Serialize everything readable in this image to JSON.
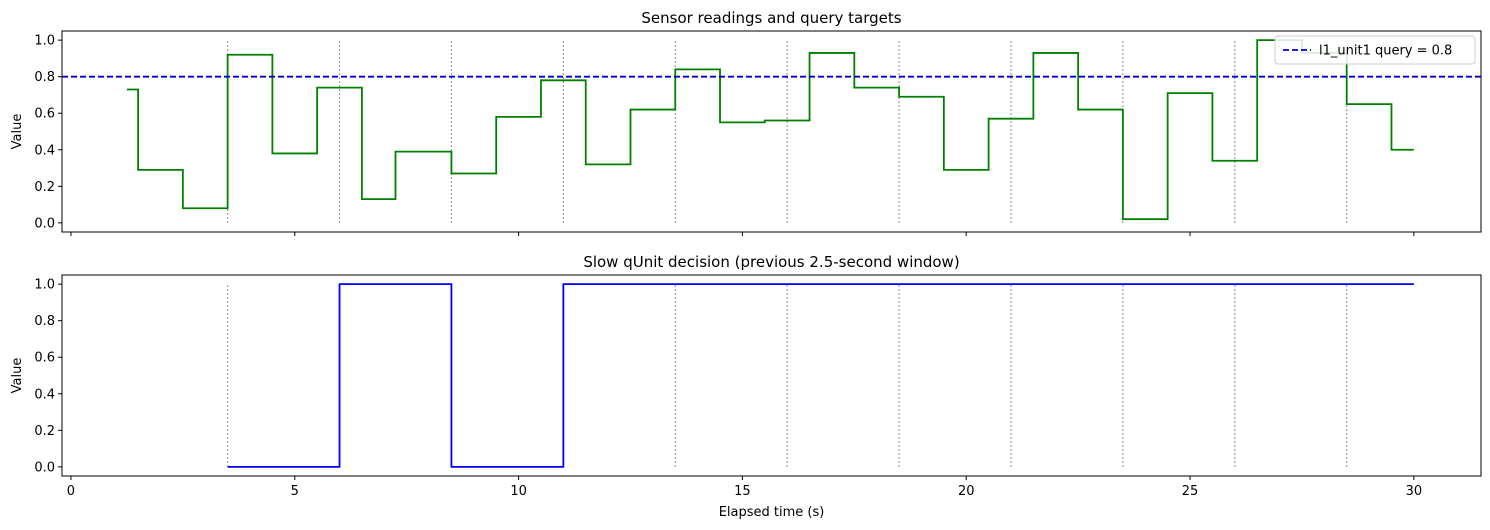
{
  "chart_data": [
    {
      "type": "line",
      "title": "Sensor readings and query targets",
      "xlabel": "",
      "ylabel": "Value",
      "xlim": [
        -0.2,
        31.5
      ],
      "ylim": [
        -0.05,
        1.05
      ],
      "xticks": [
        0,
        5,
        10,
        15,
        20,
        25,
        30
      ],
      "yticks": [
        0.0,
        0.2,
        0.4,
        0.6,
        0.8,
        1.0
      ],
      "ytick_labels": [
        "0.0",
        "0.2",
        "0.4",
        "0.6",
        "0.8",
        "1.0"
      ],
      "show_xtick_labels": false,
      "grid": false,
      "legend_position": "top-right",
      "series": [
        {
          "name": "",
          "style": "step",
          "color": "#008000",
          "x": [
            1.25,
            1.5,
            2.5,
            3.5,
            4.5,
            5.5,
            6.5,
            7.25,
            8.5,
            9.5,
            10.5,
            11.5,
            12.5,
            13.5,
            14.5,
            15.5,
            16.5,
            17.5,
            18.5,
            19.5,
            20.5,
            21.5,
            22.5,
            23.5,
            24.5,
            25.5,
            26.5,
            27.5,
            28.5,
            29.5,
            30.0
          ],
          "y": [
            0.73,
            0.29,
            0.08,
            0.92,
            0.38,
            0.74,
            0.13,
            0.39,
            0.27,
            0.58,
            0.78,
            0.32,
            0.62,
            0.84,
            0.55,
            0.56,
            0.93,
            0.74,
            0.69,
            0.29,
            0.57,
            0.93,
            0.62,
            0.02,
            0.71,
            0.34,
            1.0,
            0.93,
            0.65,
            0.4,
            0.4
          ]
        },
        {
          "name": "l1_unit1 query = 0.8",
          "style": "hline",
          "color": "#0000cc",
          "y": 0.8
        }
      ],
      "vlines": {
        "x": [
          3.5,
          6.0,
          8.5,
          11.0,
          13.5,
          16.0,
          18.5,
          21.0,
          23.5,
          26.0,
          28.5
        ],
        "ymin": 0.0,
        "ymax": 1.0,
        "color": "#808080"
      }
    },
    {
      "type": "line",
      "title": "Slow qUnit decision (previous 2.5-second window)",
      "xlabel": "Elapsed time (s)",
      "ylabel": "Value",
      "xlim": [
        -0.2,
        31.5
      ],
      "ylim": [
        -0.05,
        1.05
      ],
      "xticks": [
        0,
        5,
        10,
        15,
        20,
        25,
        30
      ],
      "xtick_labels": [
        "0",
        "5",
        "10",
        "15",
        "20",
        "25",
        "30"
      ],
      "yticks": [
        0.0,
        0.2,
        0.4,
        0.6,
        0.8,
        1.0
      ],
      "ytick_labels": [
        "0.0",
        "0.2",
        "0.4",
        "0.6",
        "0.8",
        "1.0"
      ],
      "show_xtick_labels": true,
      "grid": false,
      "series": [
        {
          "name": "",
          "style": "step",
          "color": "#0000ff",
          "x": [
            3.5,
            6.0,
            8.5,
            11.0,
            30.0
          ],
          "y": [
            0,
            1,
            0,
            1,
            1
          ]
        }
      ],
      "vlines": {
        "x": [
          3.5,
          6.0,
          8.5,
          11.0,
          13.5,
          16.0,
          18.5,
          21.0,
          23.5,
          26.0,
          28.5
        ],
        "ymin": 0.0,
        "ymax": 1.0,
        "color": "#808080"
      }
    }
  ]
}
